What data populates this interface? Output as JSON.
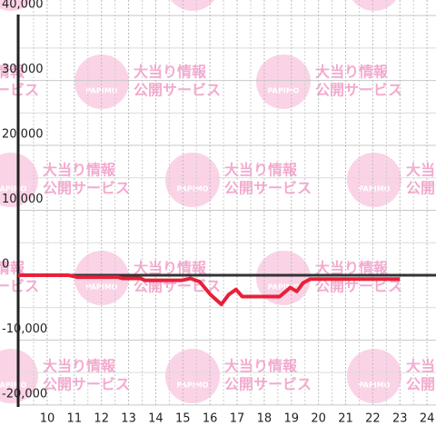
{
  "chart_data": {
    "type": "line",
    "watermark": {
      "logo": "PAPIMO",
      "line1": "大当り情報",
      "line2": "公開サービス"
    },
    "x": [
      8.93,
      10.77,
      11.1,
      12.6,
      12.78,
      13.44,
      13.61,
      14.95,
      15.28,
      15.62,
      16.02,
      16.42,
      16.69,
      16.96,
      17.19,
      18.3,
      18.57,
      18.96,
      19.2,
      19.43,
      19.7,
      23
    ],
    "series": [
      {
        "color": "#e8203a",
        "values": [
          0,
          0,
          -300,
          -300,
          -500,
          -500,
          -800,
          -800,
          -500,
          -1000,
          -3000,
          -4500,
          -3000,
          -2200,
          -3300,
          -3300,
          -3300,
          -1900,
          -2500,
          -1200,
          -600,
          -600
        ]
      }
    ],
    "xlim": [
      8.93,
      24.33
    ],
    "xticks": [
      10,
      11,
      12,
      13,
      14,
      15,
      16,
      17,
      18,
      19,
      20,
      21,
      22,
      23,
      24
    ],
    "ylim": [
      -20300,
      42400
    ],
    "yticks": [
      {
        "value": -20000,
        "label": "-20,000"
      },
      {
        "value": -10000,
        "label": "-10,000"
      },
      0,
      {
        "value": 10000,
        "label": "10,000"
      },
      {
        "value": 20000,
        "label": "20,000"
      },
      {
        "value": 30000,
        "label": "30,000"
      },
      {
        "value": 40000,
        "label": "40,000"
      }
    ],
    "grid": true
  }
}
